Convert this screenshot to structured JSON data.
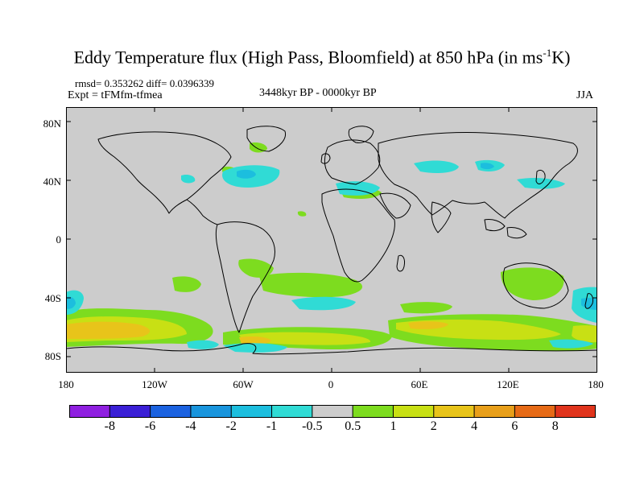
{
  "title_main": "Eddy Temperature flux (High Pass, Bloomfield) at 850 hPa (in ms",
  "title_sup": "-1",
  "title_end": "K)",
  "stats": "rmsd= 0.353262 diff= 0.0396339",
  "experiment": "Expt = tFMfm-tfmea",
  "period": "3448kyr BP - 0000kyr BP",
  "season": "JJA",
  "latitude_labels": [
    "80N",
    "40N",
    "0",
    "40S",
    "80S"
  ],
  "longitude_labels": [
    "180",
    "120W",
    "60W",
    "0",
    "60E",
    "120E",
    "180"
  ],
  "colorbar": {
    "labels": [
      "-8",
      "-6",
      "-4",
      "-2",
      "-1",
      "-0.5",
      "0.5",
      "1",
      "2",
      "4",
      "6",
      "8"
    ],
    "colors": [
      "#8f1fe0",
      "#3a1fd6",
      "#1b62e0",
      "#1995dd",
      "#1cbede",
      "#30dbd5",
      "#cccccc",
      "#7ddc1f",
      "#c8e014",
      "#e8c41a",
      "#e89f1a",
      "#e66a16",
      "#e0341c"
    ]
  },
  "map_colors": {
    "background": "#cccccc",
    "green": "#7ddc1f",
    "yellow": "#c8e014",
    "orange": "#e8c41a",
    "cyan": "#30dbd5",
    "blue": "#1cbede"
  }
}
